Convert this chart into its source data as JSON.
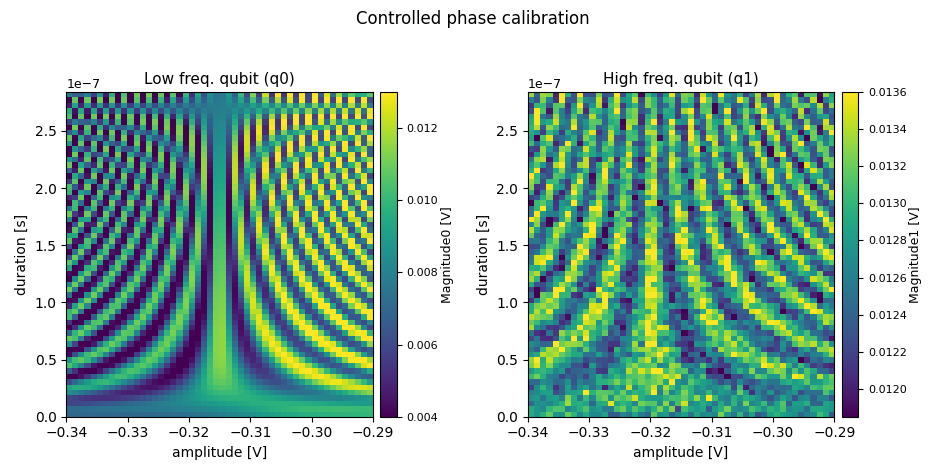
{
  "title": "Controlled phase calibration",
  "subplot1_title": "Low freq. qubit (q0)",
  "subplot2_title": "High freq. qubit (q1)",
  "xlabel": "amplitude [V]",
  "ylabel": "duration [s]",
  "colorbar1_label": "Magnitude0 [V]",
  "colorbar2_label": "Magnitude1 [V]",
  "amp_min": -0.34,
  "amp_max": -0.29,
  "n_amp": 50,
  "dur_min_s": 0.0,
  "dur_max_s": 2.84e-07,
  "n_dur": 60,
  "cmap": "viridis",
  "vmin0": 0.004,
  "vmax0": 0.013,
  "vmin1": 0.01185,
  "vmax1": 0.0136,
  "colorbar1_ticks": [
    0.004,
    0.006,
    0.008,
    0.01,
    0.012
  ],
  "colorbar2_ticks": [
    0.012,
    0.0122,
    0.0124,
    0.0126,
    0.0128,
    0.013,
    0.0132,
    0.0134,
    0.0136
  ]
}
